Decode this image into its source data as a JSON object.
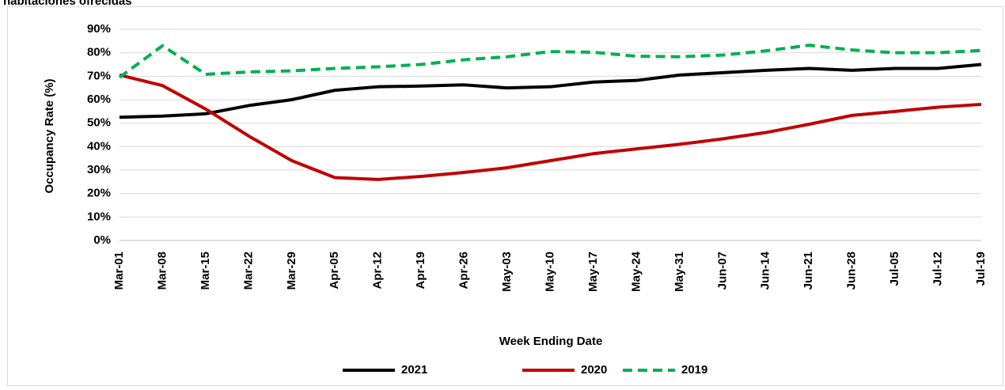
{
  "chart_data": {
    "type": "line",
    "title": "habitaciones ofrecidas",
    "x_label": "Week Ending Date",
    "y_label": "Occupancy Rate (%)",
    "categories": [
      "Mar-01",
      "Mar-08",
      "Mar-15",
      "Mar-22",
      "Mar-29",
      "Apr-05",
      "Apr-12",
      "Apr-19",
      "Apr-26",
      "May-03",
      "May-10",
      "May-17",
      "May-24",
      "May-31",
      "Jun-07",
      "Jun-14",
      "Jun-21",
      "Jun-28",
      "Jul-05",
      "Jul-12",
      "Jul-19"
    ],
    "series": [
      {
        "name": "2021",
        "color": "#000000",
        "dash": false,
        "values": [
          52.5,
          53,
          54,
          57.5,
          60,
          64,
          65.5,
          65.8,
          66.3,
          65,
          65.5,
          67.5,
          68.2,
          70.5,
          71.5,
          72.5,
          73.3,
          72.5,
          73.3,
          73.3,
          75
        ]
      },
      {
        "name": "2020",
        "color": "#c00000",
        "dash": false,
        "values": [
          70.5,
          66,
          56,
          44.5,
          34,
          26.8,
          26,
          27.3,
          29,
          31,
          34,
          37,
          39,
          41,
          43.3,
          46,
          49.5,
          53.3,
          55,
          56.8,
          58
        ]
      },
      {
        "name": "2019",
        "color": "#00b050",
        "dash": true,
        "values": [
          69.5,
          83,
          70.8,
          71.8,
          72.3,
          73.3,
          74,
          75,
          77,
          78.3,
          80.5,
          80.2,
          78.5,
          78.3,
          79,
          80.8,
          83.2,
          81.2,
          80,
          80,
          81
        ]
      }
    ],
    "ylim": [
      0,
      90
    ],
    "yticks": [
      {
        "value": 0,
        "label": "0%"
      },
      {
        "value": 10,
        "label": "10%"
      },
      {
        "value": 20,
        "label": "20%"
      },
      {
        "value": 30,
        "label": "30%"
      },
      {
        "value": 40,
        "label": "40%"
      },
      {
        "value": 50,
        "label": "50%"
      },
      {
        "value": 60,
        "label": "60%"
      },
      {
        "value": 70,
        "label": "70%"
      },
      {
        "value": 80,
        "label": "80%"
      },
      {
        "value": 90,
        "label": "90%"
      }
    ],
    "grid": true,
    "legend": "bottom"
  }
}
